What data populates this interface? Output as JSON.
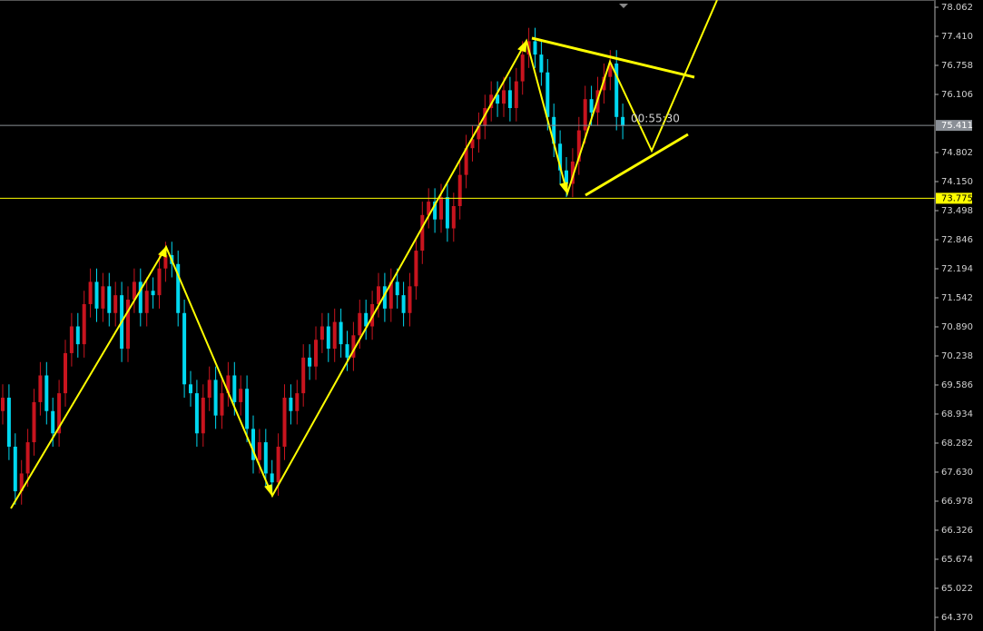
{
  "chart_data": {
    "type": "candlestick",
    "open": [
      69.0,
      69.3,
      68.2,
      67.2,
      67.6,
      68.3,
      69.2,
      69.8,
      69.0,
      68.5,
      69.4,
      70.3,
      70.9,
      70.5,
      71.4,
      71.9,
      71.3,
      71.8,
      71.2,
      71.6,
      70.4,
      71.5,
      71.9,
      71.2,
      71.7,
      71.6,
      72.2,
      72.5,
      72.3,
      71.2,
      69.6,
      69.4,
      68.5,
      69.3,
      69.7,
      68.9,
      69.4,
      69.8,
      69.2,
      69.5,
      68.6,
      67.9,
      68.3,
      67.6,
      67.4,
      68.2,
      69.3,
      69.0,
      69.4,
      70.2,
      70.0,
      70.6,
      70.9,
      70.4,
      71.0,
      70.5,
      70.2,
      70.7,
      71.2,
      70.9,
      71.4,
      71.8,
      71.3,
      71.9,
      71.6,
      71.2,
      71.8,
      72.6,
      73.4,
      73.7,
      73.3,
      73.8,
      73.1,
      73.6,
      74.3,
      74.9,
      75.1,
      75.4,
      75.8,
      76.1,
      75.9,
      76.2,
      75.8,
      76.4,
      77.0,
      77.3,
      77.0,
      76.6,
      75.6,
      75.0,
      74.4,
      74.1,
      74.6,
      75.3,
      76.0,
      75.7,
      76.2,
      76.5,
      76.8,
      75.6
    ],
    "high": [
      69.6,
      69.6,
      68.5,
      67.9,
      68.6,
      69.5,
      70.1,
      70.1,
      69.3,
      69.7,
      70.6,
      71.2,
      71.2,
      71.7,
      72.2,
      72.2,
      72.1,
      72.1,
      71.9,
      71.9,
      71.8,
      72.2,
      72.2,
      72.0,
      72.0,
      72.5,
      72.8,
      72.8,
      72.6,
      71.5,
      69.9,
      69.7,
      69.6,
      70.0,
      70.0,
      69.7,
      70.1,
      70.1,
      69.8,
      69.8,
      68.9,
      68.6,
      68.6,
      67.9,
      68.5,
      69.6,
      69.6,
      69.7,
      70.5,
      70.5,
      70.9,
      71.2,
      71.2,
      71.3,
      71.3,
      70.8,
      71.0,
      71.5,
      71.5,
      71.7,
      72.1,
      72.1,
      72.2,
      72.2,
      71.9,
      72.1,
      72.9,
      73.7,
      74.0,
      74.0,
      74.1,
      74.1,
      73.9,
      74.6,
      75.2,
      75.4,
      75.7,
      76.1,
      76.4,
      76.4,
      76.5,
      76.5,
      76.7,
      77.3,
      77.6,
      77.6,
      77.3,
      76.9,
      75.9,
      75.3,
      74.7,
      74.9,
      75.6,
      76.3,
      76.3,
      76.5,
      76.8,
      77.1,
      77.1,
      75.9
    ],
    "low": [
      68.7,
      67.9,
      66.9,
      66.9,
      67.3,
      68.0,
      68.9,
      68.7,
      68.2,
      68.2,
      69.1,
      70.0,
      70.2,
      70.2,
      71.1,
      71.0,
      71.0,
      70.9,
      70.9,
      70.1,
      70.1,
      71.2,
      70.9,
      70.9,
      71.3,
      71.3,
      71.9,
      72.0,
      70.9,
      69.3,
      69.1,
      68.2,
      68.2,
      69.0,
      68.6,
      68.6,
      69.1,
      68.9,
      68.9,
      68.3,
      67.6,
      67.6,
      67.3,
      67.1,
      67.1,
      67.9,
      68.7,
      68.7,
      69.1,
      69.7,
      69.7,
      70.3,
      70.1,
      70.1,
      70.2,
      69.9,
      69.9,
      70.4,
      70.6,
      70.6,
      71.1,
      71.0,
      71.0,
      71.3,
      70.9,
      70.9,
      71.5,
      72.3,
      73.1,
      73.0,
      73.0,
      72.8,
      72.8,
      73.3,
      74.0,
      74.6,
      74.8,
      75.1,
      75.5,
      75.6,
      75.6,
      75.5,
      75.5,
      76.1,
      76.7,
      76.7,
      76.3,
      75.3,
      74.7,
      74.1,
      73.8,
      73.8,
      74.3,
      75.0,
      75.4,
      75.4,
      75.9,
      76.2,
      75.3,
      75.1
    ],
    "close": [
      69.3,
      68.2,
      67.2,
      67.6,
      68.3,
      69.2,
      69.8,
      69.0,
      68.5,
      69.4,
      70.3,
      70.9,
      70.5,
      71.4,
      71.9,
      71.3,
      71.8,
      71.2,
      71.6,
      70.4,
      71.5,
      71.9,
      71.2,
      71.7,
      71.6,
      72.2,
      72.5,
      72.3,
      71.2,
      69.6,
      69.4,
      68.5,
      69.3,
      69.7,
      68.9,
      69.4,
      69.8,
      69.2,
      69.5,
      68.6,
      67.9,
      68.3,
      67.6,
      67.4,
      68.2,
      69.3,
      69.0,
      69.4,
      70.2,
      70.0,
      70.6,
      70.9,
      70.4,
      71.0,
      70.5,
      70.2,
      70.7,
      71.2,
      70.9,
      71.4,
      71.8,
      71.3,
      71.9,
      71.6,
      71.2,
      71.8,
      72.6,
      73.4,
      73.7,
      73.3,
      73.8,
      73.1,
      73.6,
      74.3,
      74.9,
      75.1,
      75.4,
      75.8,
      76.1,
      75.9,
      76.2,
      75.8,
      76.4,
      77.0,
      77.3,
      77.0,
      76.6,
      75.6,
      75.0,
      74.4,
      74.1,
      74.6,
      75.3,
      76.0,
      75.7,
      76.2,
      76.5,
      76.8,
      75.6,
      75.4
    ],
    "up_color": "#c8141e",
    "down_color": "#00d8f0",
    "ylim": [
      64.064,
      78.225
    ],
    "yticks": [
      78.062,
      {
        "value": 77.41,
        "label": "77.410"
      },
      76.758,
      76.106,
      74.802,
      {
        "value": 74.15,
        "label": "74.150"
      },
      73.498,
      72.846,
      72.194,
      71.542,
      {
        "value": 70.89,
        "label": "70.890"
      },
      70.238,
      69.586,
      68.934,
      68.282,
      {
        "value": 67.63,
        "label": "67.630"
      },
      66.978,
      66.326,
      65.674,
      65.022,
      {
        "value": 64.37,
        "label": "64.370"
      }
    ],
    "price_lines": [
      {
        "value": 75.411,
        "color": "#8a8f96",
        "text_color": "#ffffff"
      },
      {
        "value": 73.775,
        "color": "#ffff00",
        "text_color": "#000000"
      }
    ],
    "timer": "00:55:30"
  }
}
